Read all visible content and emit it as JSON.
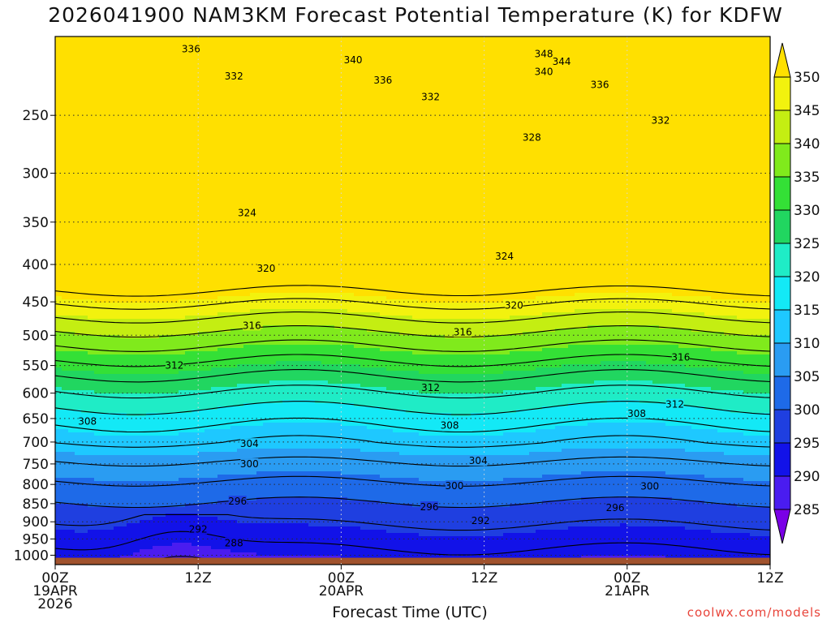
{
  "chart_data": {
    "type": "heatmap",
    "title": "2026041900 NAM3KM Forecast Potential Temperature (K) for KDFW",
    "xlabel": "Forecast Time (UTC)",
    "ylabel": "",
    "x_ticks": [
      {
        "hour": 0,
        "lines": [
          "00Z",
          "19APR",
          "2026"
        ]
      },
      {
        "hour": 12,
        "lines": [
          "12Z"
        ]
      },
      {
        "hour": 24,
        "lines": [
          "00Z",
          "20APR"
        ]
      },
      {
        "hour": 36,
        "lines": [
          "12Z"
        ]
      },
      {
        "hour": 48,
        "lines": [
          "00Z",
          "21APR"
        ]
      },
      {
        "hour": 60,
        "lines": [
          "12Z"
        ]
      }
    ],
    "xlim": [
      0,
      60
    ],
    "y_ticks": [
      250,
      300,
      350,
      400,
      450,
      500,
      550,
      600,
      650,
      700,
      750,
      800,
      850,
      900,
      950,
      1000
    ],
    "ylim": [
      1030,
      195
    ],
    "y_scale": "log-pressure",
    "grid": true,
    "colorbar": {
      "levels": [
        285,
        290,
        295,
        300,
        305,
        310,
        315,
        320,
        325,
        330,
        335,
        340,
        345,
        350
      ],
      "labels": [
        "350",
        "345",
        "340",
        "335",
        "330",
        "325",
        "320",
        "315",
        "310",
        "305",
        "300",
        "295",
        "290",
        "285"
      ],
      "colors": [
        "#7a00e6",
        "#4a1cf0",
        "#1212e8",
        "#1f3fe0",
        "#1e6ae8",
        "#2a9cf2",
        "#1ec8ff",
        "#13e9f6",
        "#1fecc6",
        "#21d660",
        "#34e036",
        "#80ea1c",
        "#c4ee12",
        "#f2f20e",
        "#ffe000"
      ]
    },
    "contour_interval": 4,
    "contour_labels": [
      {
        "value": "336",
        "hour": 11.4,
        "p": 203
      },
      {
        "value": "340",
        "hour": 25.0,
        "p": 210
      },
      {
        "value": "348",
        "hour": 41.0,
        "p": 206
      },
      {
        "value": "344",
        "hour": 42.5,
        "p": 211
      },
      {
        "value": "340",
        "hour": 41.0,
        "p": 218
      },
      {
        "value": "332",
        "hour": 15.0,
        "p": 221
      },
      {
        "value": "336",
        "hour": 27.5,
        "p": 224
      },
      {
        "value": "336",
        "hour": 45.7,
        "p": 227
      },
      {
        "value": "332",
        "hour": 31.5,
        "p": 236
      },
      {
        "value": "332",
        "hour": 50.8,
        "p": 254
      },
      {
        "value": "328",
        "hour": 40.0,
        "p": 268
      },
      {
        "value": "324",
        "hour": 16.1,
        "p": 340
      },
      {
        "value": "324",
        "hour": 37.7,
        "p": 390
      },
      {
        "value": "320",
        "hour": 17.7,
        "p": 405
      },
      {
        "value": "320",
        "hour": 38.5,
        "p": 455
      },
      {
        "value": "316",
        "hour": 16.5,
        "p": 485
      },
      {
        "value": "316",
        "hour": 34.2,
        "p": 495
      },
      {
        "value": "316",
        "hour": 52.5,
        "p": 536
      },
      {
        "value": "312",
        "hour": 10.0,
        "p": 550
      },
      {
        "value": "312",
        "hour": 31.5,
        "p": 590
      },
      {
        "value": "312",
        "hour": 52.0,
        "p": 622
      },
      {
        "value": "308",
        "hour": 2.7,
        "p": 656
      },
      {
        "value": "308",
        "hour": 33.1,
        "p": 664
      },
      {
        "value": "308",
        "hour": 48.8,
        "p": 640
      },
      {
        "value": "304",
        "hour": 16.3,
        "p": 704
      },
      {
        "value": "304",
        "hour": 35.5,
        "p": 743
      },
      {
        "value": "300",
        "hour": 16.3,
        "p": 750
      },
      {
        "value": "300",
        "hour": 33.5,
        "p": 804
      },
      {
        "value": "300",
        "hour": 49.9,
        "p": 805
      },
      {
        "value": "296",
        "hour": 15.3,
        "p": 844
      },
      {
        "value": "296",
        "hour": 31.4,
        "p": 859
      },
      {
        "value": "296",
        "hour": 47.0,
        "p": 861
      },
      {
        "value": "292",
        "hour": 12.0,
        "p": 922
      },
      {
        "value": "292",
        "hour": 35.7,
        "p": 897
      },
      {
        "value": "288",
        "hour": 15.0,
        "p": 962
      }
    ]
  },
  "watermark": "coolwx.com/models"
}
